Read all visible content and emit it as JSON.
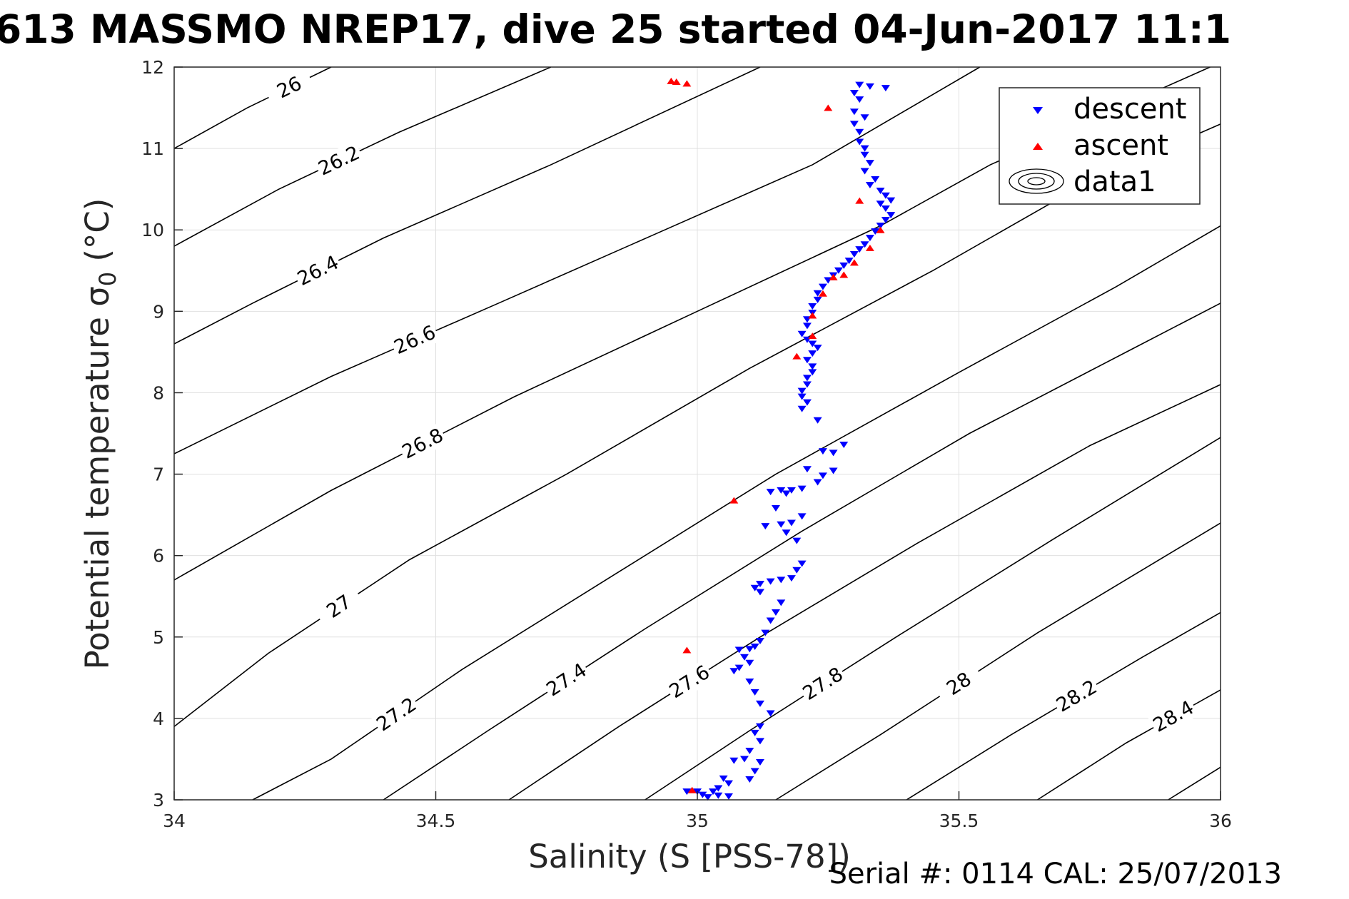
{
  "chart_data": {
    "type": "scatter",
    "title": "613 MASSMO NREP17, dive 25 started 04-Jun-2017 11:1",
    "xlabel": "Salinity (S [PSS-78])",
    "ylabel": "Potential temperature σ",
    "ylabel_subscript": "0",
    "ylabel_unit": " (°C)",
    "footer": "Serial #: 0114  CAL: 25/07/2013",
    "xlim": [
      34,
      36
    ],
    "ylim": [
      3,
      12
    ],
    "xticks": [
      "34",
      "34.5",
      "35",
      "35.5",
      "36"
    ],
    "yticks": [
      "3",
      "4",
      "5",
      "6",
      "7",
      "8",
      "9",
      "10",
      "11",
      "12"
    ],
    "grid": true,
    "legend_position": "top-right",
    "legend": [
      "descent",
      "ascent",
      "data1"
    ],
    "colors": {
      "descent": "#0000ff",
      "ascent": "#ff0000",
      "contour": "#000000",
      "grid": "#e0e0e0"
    },
    "series": [
      {
        "name": "descent",
        "marker": "triangle-down",
        "points": [
          [
            35.31,
            11.78
          ],
          [
            35.33,
            11.76
          ],
          [
            35.36,
            11.74
          ],
          [
            35.3,
            11.68
          ],
          [
            35.31,
            11.6
          ],
          [
            35.3,
            11.45
          ],
          [
            35.32,
            11.38
          ],
          [
            35.3,
            11.3
          ],
          [
            35.31,
            11.2
          ],
          [
            35.31,
            11.08
          ],
          [
            35.32,
            11.0
          ],
          [
            35.32,
            10.92
          ],
          [
            35.33,
            10.82
          ],
          [
            35.32,
            10.72
          ],
          [
            35.34,
            10.62
          ],
          [
            35.33,
            10.55
          ],
          [
            35.35,
            10.48
          ],
          [
            35.36,
            10.42
          ],
          [
            35.37,
            10.36
          ],
          [
            35.35,
            10.32
          ],
          [
            35.36,
            10.26
          ],
          [
            35.37,
            10.18
          ],
          [
            35.36,
            10.12
          ],
          [
            35.35,
            10.05
          ],
          [
            35.34,
            9.98
          ],
          [
            35.33,
            9.9
          ],
          [
            35.32,
            9.82
          ],
          [
            35.31,
            9.76
          ],
          [
            35.3,
            9.7
          ],
          [
            35.29,
            9.62
          ],
          [
            35.28,
            9.56
          ],
          [
            35.27,
            9.5
          ],
          [
            35.26,
            9.44
          ],
          [
            35.25,
            9.38
          ],
          [
            35.24,
            9.3
          ],
          [
            35.23,
            9.22
          ],
          [
            35.23,
            9.14
          ],
          [
            35.22,
            9.06
          ],
          [
            35.22,
            8.98
          ],
          [
            35.21,
            8.9
          ],
          [
            35.21,
            8.82
          ],
          [
            35.2,
            8.72
          ],
          [
            35.21,
            8.65
          ],
          [
            35.22,
            8.6
          ],
          [
            35.23,
            8.55
          ],
          [
            35.22,
            8.48
          ],
          [
            35.21,
            8.4
          ],
          [
            35.22,
            8.32
          ],
          [
            35.22,
            8.25
          ],
          [
            35.21,
            8.18
          ],
          [
            35.21,
            8.1
          ],
          [
            35.2,
            8.02
          ],
          [
            35.2,
            7.95
          ],
          [
            35.21,
            7.88
          ],
          [
            35.2,
            7.8
          ],
          [
            35.23,
            7.66
          ],
          [
            35.24,
            7.28
          ],
          [
            35.26,
            7.26
          ],
          [
            35.28,
            7.36
          ],
          [
            35.21,
            7.06
          ],
          [
            35.26,
            7.04
          ],
          [
            35.24,
            6.98
          ],
          [
            35.23,
            6.9
          ],
          [
            35.2,
            6.82
          ],
          [
            35.18,
            6.8
          ],
          [
            35.16,
            6.8
          ],
          [
            35.14,
            6.78
          ],
          [
            35.17,
            6.76
          ],
          [
            35.15,
            6.58
          ],
          [
            35.2,
            6.48
          ],
          [
            35.18,
            6.4
          ],
          [
            35.16,
            6.38
          ],
          [
            35.13,
            6.36
          ],
          [
            35.17,
            6.28
          ],
          [
            35.19,
            6.18
          ],
          [
            35.2,
            5.9
          ],
          [
            35.19,
            5.82
          ],
          [
            35.18,
            5.72
          ],
          [
            35.16,
            5.7
          ],
          [
            35.14,
            5.68
          ],
          [
            35.12,
            5.65
          ],
          [
            35.11,
            5.6
          ],
          [
            35.12,
            5.55
          ],
          [
            35.16,
            5.42
          ],
          [
            35.15,
            5.3
          ],
          [
            35.14,
            5.2
          ],
          [
            35.13,
            5.05
          ],
          [
            35.12,
            4.95
          ],
          [
            35.11,
            4.88
          ],
          [
            35.1,
            4.85
          ],
          [
            35.08,
            4.84
          ],
          [
            35.09,
            4.75
          ],
          [
            35.1,
            4.68
          ],
          [
            35.08,
            4.62
          ],
          [
            35.07,
            4.58
          ],
          [
            35.1,
            4.45
          ],
          [
            35.11,
            4.32
          ],
          [
            35.12,
            4.18
          ],
          [
            35.14,
            4.06
          ],
          [
            35.12,
            3.9
          ],
          [
            35.11,
            3.82
          ],
          [
            35.12,
            3.72
          ],
          [
            35.1,
            3.6
          ],
          [
            35.09,
            3.5
          ],
          [
            35.07,
            3.48
          ],
          [
            35.12,
            3.46
          ],
          [
            35.11,
            3.35
          ],
          [
            35.1,
            3.25
          ],
          [
            35.05,
            3.26
          ],
          [
            35.06,
            3.2
          ],
          [
            35.04,
            3.14
          ],
          [
            35.03,
            3.1
          ],
          [
            35.0,
            3.1
          ],
          [
            34.98,
            3.1
          ],
          [
            35.01,
            3.06
          ],
          [
            35.04,
            3.05
          ],
          [
            35.02,
            3.03
          ],
          [
            35.06,
            3.04
          ]
        ]
      },
      {
        "name": "ascent",
        "marker": "triangle-up",
        "points": [
          [
            34.96,
            11.82
          ],
          [
            34.95,
            11.83
          ],
          [
            34.98,
            11.8
          ],
          [
            35.25,
            11.5
          ],
          [
            35.31,
            10.36
          ],
          [
            35.35,
            10.0
          ],
          [
            35.33,
            9.78
          ],
          [
            35.3,
            9.6
          ],
          [
            35.28,
            9.45
          ],
          [
            35.26,
            9.42
          ],
          [
            35.24,
            9.22
          ],
          [
            35.22,
            8.95
          ],
          [
            35.22,
            8.7
          ],
          [
            35.19,
            8.45
          ],
          [
            35.07,
            6.68
          ],
          [
            34.98,
            4.84
          ],
          [
            34.99,
            3.12
          ]
        ]
      }
    ],
    "contours": [
      {
        "label": "26",
        "points": [
          [
            34.0,
            11.0
          ],
          [
            34.14,
            11.5
          ],
          [
            34.3,
            12.0
          ]
        ]
      },
      {
        "label": "26.2",
        "points": [
          [
            34.0,
            9.8
          ],
          [
            34.2,
            10.5
          ],
          [
            34.43,
            11.2
          ],
          [
            34.72,
            12.0
          ]
        ]
      },
      {
        "label": "26.4",
        "points": [
          [
            34.0,
            8.6
          ],
          [
            34.15,
            9.1
          ],
          [
            34.4,
            9.9
          ],
          [
            34.72,
            10.8
          ],
          [
            35.12,
            12.0
          ]
        ]
      },
      {
        "label": "26.6",
        "points": [
          [
            34.0,
            7.25
          ],
          [
            34.3,
            8.2
          ],
          [
            34.62,
            9.1
          ],
          [
            34.92,
            9.95
          ],
          [
            35.22,
            10.8
          ],
          [
            35.54,
            12.0
          ]
        ]
      },
      {
        "label": "26.8",
        "points": [
          [
            34.0,
            5.7
          ],
          [
            34.3,
            6.8
          ],
          [
            34.65,
            7.95
          ],
          [
            35.0,
            9.0
          ],
          [
            35.35,
            10.05
          ],
          [
            35.56,
            10.8
          ],
          [
            35.98,
            12.0
          ]
        ]
      },
      {
        "label": "27",
        "points": [
          [
            34.0,
            3.9
          ],
          [
            34.18,
            4.8
          ],
          [
            34.45,
            5.95
          ],
          [
            34.75,
            7.0
          ],
          [
            35.1,
            8.3
          ],
          [
            35.45,
            9.5
          ],
          [
            35.75,
            10.6
          ],
          [
            36.0,
            11.3
          ]
        ]
      },
      {
        "label": "27.2",
        "points": [
          [
            34.15,
            3.0
          ],
          [
            34.3,
            3.5
          ],
          [
            34.55,
            4.6
          ],
          [
            34.85,
            5.8
          ],
          [
            35.15,
            7.0
          ],
          [
            35.5,
            8.25
          ],
          [
            35.8,
            9.3
          ],
          [
            36.0,
            10.05
          ]
        ]
      },
      {
        "label": "27.4",
        "points": [
          [
            34.4,
            3.0
          ],
          [
            34.6,
            3.85
          ],
          [
            34.9,
            5.1
          ],
          [
            35.2,
            6.3
          ],
          [
            35.52,
            7.5
          ],
          [
            35.82,
            8.5
          ],
          [
            36.0,
            9.1
          ]
        ]
      },
      {
        "label": "27.6",
        "points": [
          [
            34.64,
            3.0
          ],
          [
            34.85,
            3.9
          ],
          [
            35.12,
            5.0
          ],
          [
            35.42,
            6.15
          ],
          [
            35.75,
            7.35
          ],
          [
            36.0,
            8.1
          ]
        ]
      },
      {
        "label": "27.8",
        "points": [
          [
            34.9,
            3.0
          ],
          [
            35.1,
            3.85
          ],
          [
            35.38,
            5.0
          ],
          [
            35.68,
            6.2
          ],
          [
            36.0,
            7.45
          ]
        ]
      },
      {
        "label": "28",
        "points": [
          [
            35.15,
            3.0
          ],
          [
            35.35,
            3.8
          ],
          [
            35.65,
            5.05
          ],
          [
            36.0,
            6.4
          ]
        ]
      },
      {
        "label": "28.2",
        "points": [
          [
            35.4,
            3.0
          ],
          [
            35.6,
            3.8
          ],
          [
            35.85,
            4.75
          ],
          [
            36.0,
            5.3
          ]
        ]
      },
      {
        "label": "28.4",
        "points": [
          [
            35.65,
            3.0
          ],
          [
            35.82,
            3.7
          ],
          [
            36.0,
            4.35
          ]
        ]
      },
      {
        "label": "",
        "points": [
          [
            35.9,
            3.0
          ],
          [
            36.0,
            3.4
          ]
        ]
      }
    ]
  }
}
